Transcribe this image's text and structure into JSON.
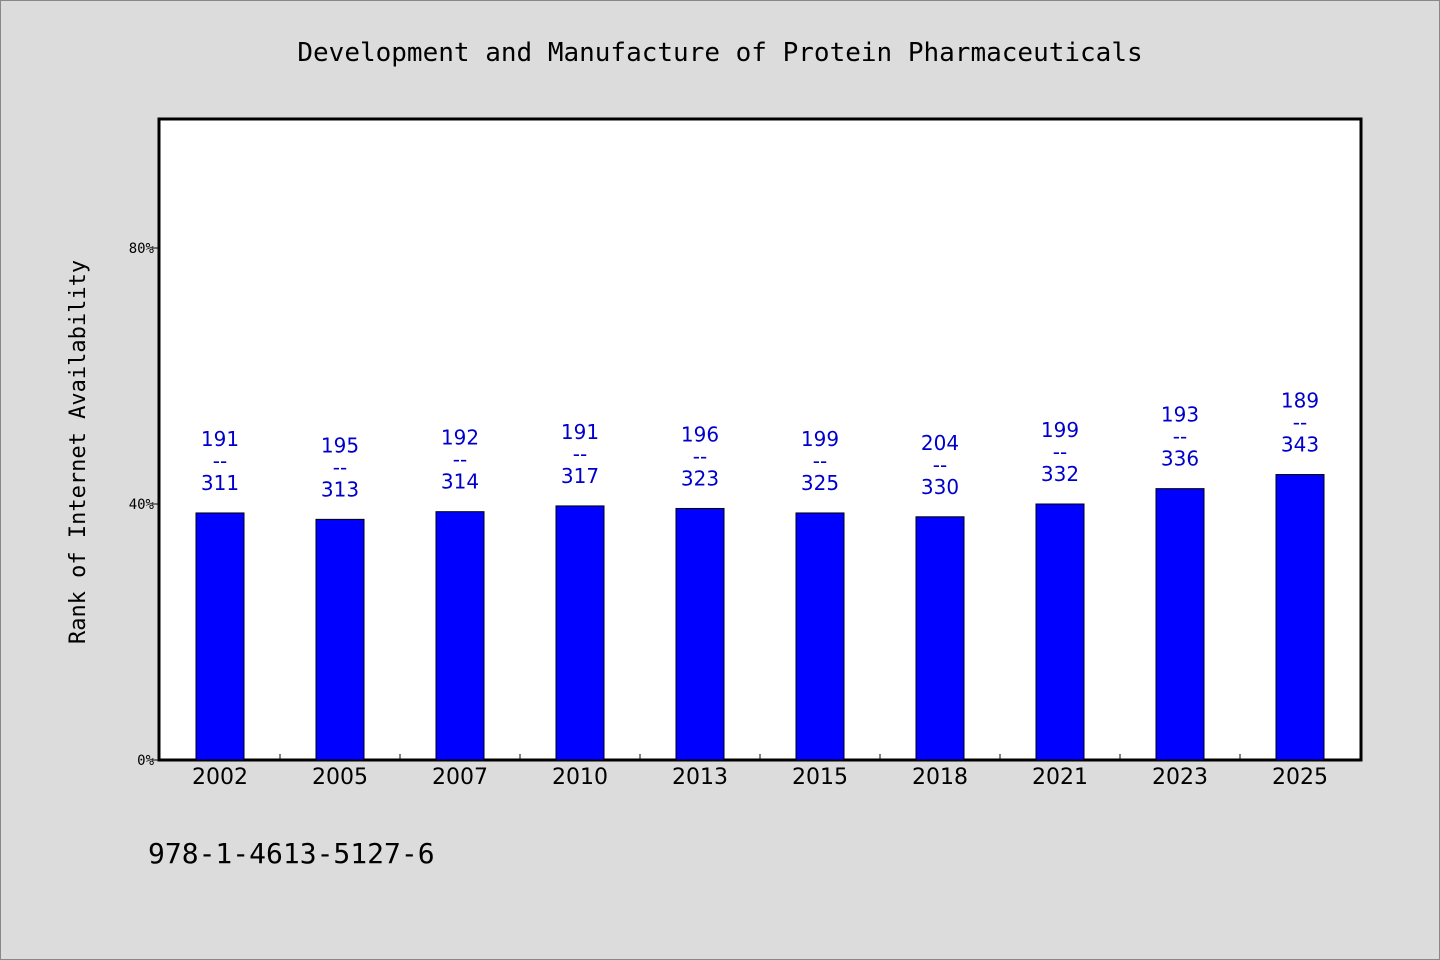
{
  "chart_data": {
    "type": "bar",
    "title": "Development and Manufacture of Protein Pharmaceuticals",
    "xlabel": "",
    "ylabel": "Rank of Internet Availability",
    "categories": [
      "2002",
      "2005",
      "2007",
      "2010",
      "2013",
      "2015",
      "2018",
      "2021",
      "2023",
      "2025"
    ],
    "values": [
      38.6,
      37.6,
      38.8,
      39.7,
      39.3,
      38.6,
      38.0,
      40.0,
      42.4,
      44.6
    ],
    "data_labels_top": [
      "191",
      "195",
      "192",
      "191",
      "196",
      "199",
      "204",
      "199",
      "193",
      "189"
    ],
    "data_labels_sep": "--",
    "data_labels_bottom": [
      "311",
      "313",
      "314",
      "317",
      "323",
      "325",
      "330",
      "332",
      "336",
      "343"
    ],
    "ylim": [
      0,
      100
    ],
    "yticks": [
      0,
      40,
      80
    ],
    "ytick_labels": [
      "0%",
      "40%",
      "80%"
    ],
    "grid": false,
    "legend": "none",
    "colors": {
      "bar": "#0000ff",
      "bar_edge": "#000000",
      "data_label": "#0000cc",
      "plot_bg": "#ffffff",
      "page_bg": "#dcdcdc"
    }
  },
  "footer": {
    "isbn": "978-1-4613-5127-6"
  }
}
